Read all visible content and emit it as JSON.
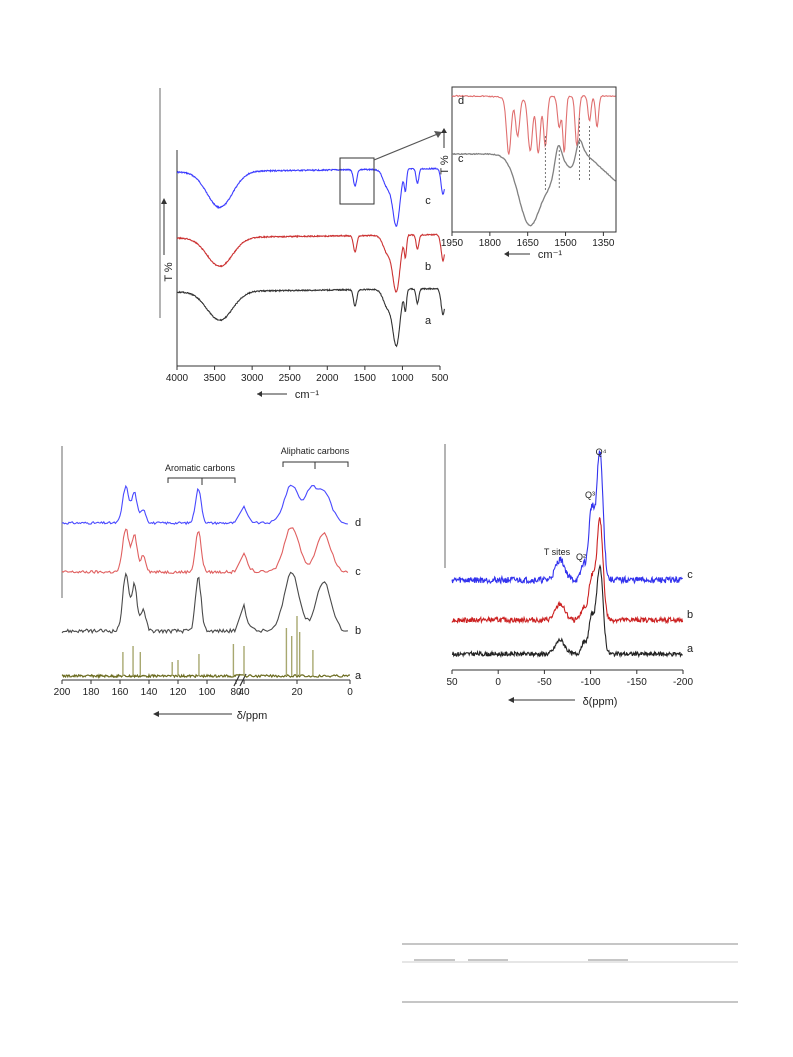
{
  "chart_data": [
    {
      "type": "line",
      "panel": "FT-IR spectra",
      "xlabel": "cm⁻¹",
      "ylabel": "T %",
      "xlim": [
        4000,
        500
      ],
      "x_ticks": [
        "4000",
        "3500",
        "3000",
        "2500",
        "2000",
        "1500",
        "1000",
        "500"
      ],
      "series": [
        {
          "name": "c",
          "color": "#3d3dff"
        },
        {
          "name": "b",
          "color": "#cc3333"
        },
        {
          "name": "a",
          "color": "#333333"
        }
      ],
      "bands_cm1": [
        3430,
        1630,
        1080,
        960,
        800,
        460
      ]
    },
    {
      "type": "line",
      "panel": "FT-IR inset",
      "xlabel": "cm⁻¹",
      "ylabel": "T %",
      "xlim": [
        1950,
        1300
      ],
      "x_ticks": [
        "1950",
        "1800",
        "1650",
        "1500",
        "1350"
      ],
      "series": [
        {
          "name": "d",
          "color": "#e07070"
        },
        {
          "name": "c",
          "color": "#808080"
        }
      ],
      "marked_bands_cm1": [
        1580,
        1525,
        1445,
        1405
      ]
    },
    {
      "type": "line",
      "panel": "13C NMR",
      "xlabel": "δ/ppm",
      "xlim": [
        200,
        0
      ],
      "x_ticks": [
        "200",
        "180",
        "160",
        "140",
        "120",
        "100",
        "80",
        "40",
        "20",
        "0"
      ],
      "annotations": [
        "Aromatic carbons",
        "Aliphatic carbons"
      ],
      "series": [
        {
          "name": "d",
          "color": "#4a4aff"
        },
        {
          "name": "c",
          "color": "#e06060"
        },
        {
          "name": "b",
          "color": "#4a4a4a"
        },
        {
          "name": "a",
          "color": "#6b6b1f"
        }
      ],
      "peaks_ppm": [
        156,
        150,
        144,
        106,
        43,
        22,
        10
      ],
      "reference_lines_ppm": [
        158,
        151,
        146,
        124,
        120,
        57,
        44,
        40,
        24,
        22,
        20,
        19,
        14
      ]
    },
    {
      "type": "line",
      "panel": "29Si NMR",
      "xlabel": "δ(ppm)",
      "xlim": [
        50,
        -200
      ],
      "x_ticks": [
        "50",
        "0",
        "-50",
        "-100",
        "-150",
        "-200"
      ],
      "annotations": [
        "T sites",
        "Q²",
        "Q³",
        "Q⁴"
      ],
      "series": [
        {
          "name": "c",
          "color": "#3333ee"
        },
        {
          "name": "b",
          "color": "#cc2222"
        },
        {
          "name": "a",
          "color": "#222222"
        }
      ],
      "peaks_ppm": [
        -67,
        -92,
        -101,
        -110
      ]
    }
  ]
}
